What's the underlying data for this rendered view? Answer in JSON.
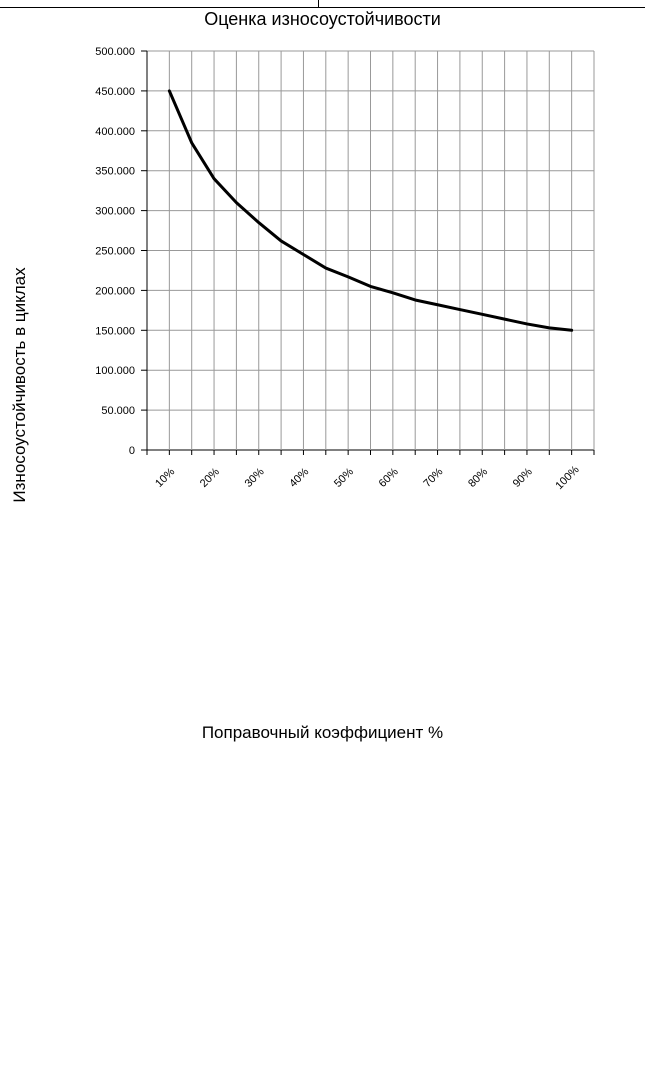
{
  "chart_data": {
    "type": "line",
    "title": "Оценка износоустойчивости",
    "xlabel": "Поправочный коэффициент %",
    "ylabel": "Износоустойчивость в циклах",
    "x_tick_labels": [
      "10%",
      "20%",
      "30%",
      "40%",
      "50%",
      "60%",
      "70%",
      "80%",
      "90%",
      "100%"
    ],
    "y_tick_labels": [
      "0",
      "50.000",
      "100.000",
      "150.000",
      "200.000",
      "250.000",
      "300.000",
      "350.000",
      "400.000",
      "450.000",
      "500.000"
    ],
    "ylim": [
      0,
      500000
    ],
    "xlim": [
      5,
      105
    ],
    "grid": true,
    "series": [
      {
        "x": [
          10,
          15,
          20,
          25,
          30,
          35,
          40,
          45,
          50,
          55,
          60,
          65,
          70,
          75,
          80,
          85,
          90,
          95,
          100
        ],
        "y": [
          450000,
          385000,
          340000,
          310000,
          285000,
          262000,
          245000,
          228000,
          217000,
          205000,
          197000,
          188000,
          182000,
          176000,
          170000,
          164000,
          158000,
          153000,
          150000
        ]
      }
    ],
    "line_color": "#000000",
    "grid_color": "#999999"
  }
}
